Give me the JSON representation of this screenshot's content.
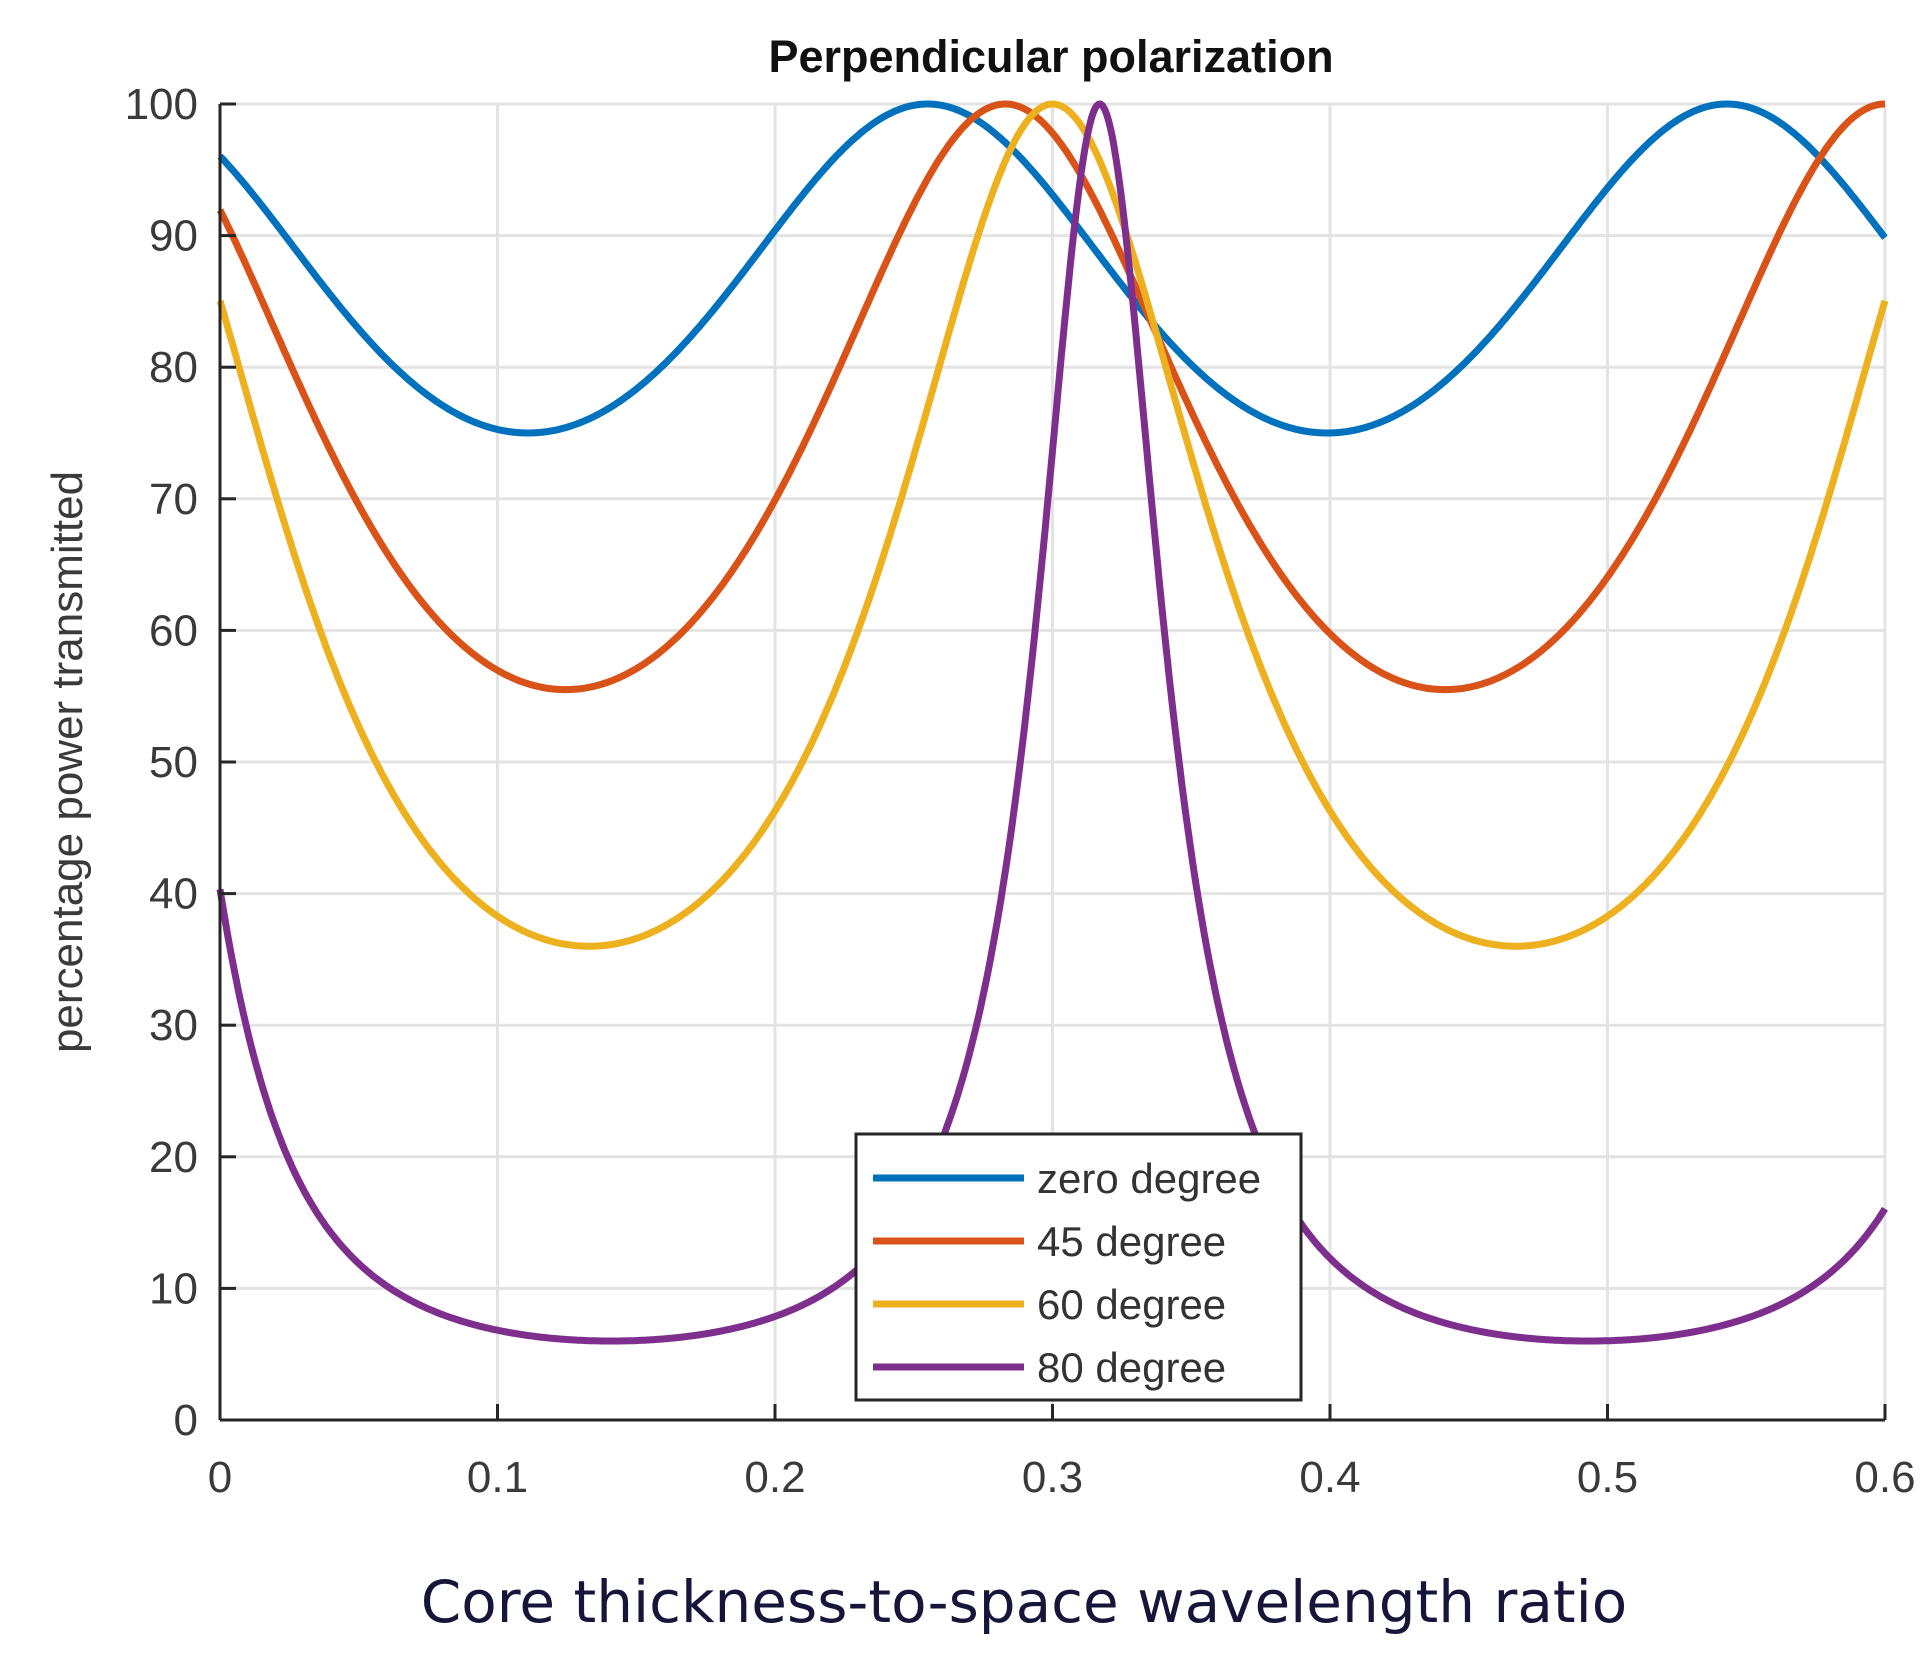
{
  "chart_data": {
    "type": "line",
    "title": "Perpendicular polarization",
    "xlabel": "Core thickness-to-space wavelength ratio",
    "ylabel": "percentage power transmitted",
    "xlim": [
      0,
      0.6
    ],
    "ylim": [
      0,
      100
    ],
    "grid": true,
    "legend_position": "bottom-center",
    "xticks": [
      "0",
      "0.1",
      "0.2",
      "0.3",
      "0.4",
      "0.5",
      "0.6"
    ],
    "xtick_values": [
      0,
      0.1,
      0.2,
      0.3,
      0.4,
      0.5,
      0.6
    ],
    "yticks": [
      "0",
      "10",
      "20",
      "30",
      "40",
      "50",
      "60",
      "70",
      "80",
      "90",
      "100"
    ],
    "ytick_values": [
      0,
      10,
      20,
      30,
      40,
      50,
      60,
      70,
      80,
      90,
      100
    ],
    "series": [
      {
        "name": "zero degree",
        "color": "#0072BD",
        "model": {
          "peak_x": 0.255,
          "period": 0.288,
          "min_value": 75
        },
        "key_points": [
          [
            0,
            95.5
          ],
          [
            0.11,
            75
          ],
          [
            0.255,
            100
          ],
          [
            0.4,
            75
          ],
          [
            0.543,
            100
          ],
          [
            0.6,
            90
          ]
        ]
      },
      {
        "name": "45 degree",
        "color": "#D95319",
        "model": {
          "peak_x": 0.283,
          "period": 0.317,
          "min_value": 55.5
        },
        "key_points": [
          [
            0,
            91
          ],
          [
            0.125,
            55.5
          ],
          [
            0.283,
            100
          ],
          [
            0.44,
            55.5
          ],
          [
            0.6,
            100
          ]
        ]
      },
      {
        "name": "60 degree",
        "color": "#EDB120",
        "model": {
          "peak_x": 0.3,
          "period": 0.334,
          "min_value": 36
        },
        "key_points": [
          [
            0,
            84
          ],
          [
            0.133,
            36
          ],
          [
            0.3,
            100
          ],
          [
            0.467,
            36
          ],
          [
            0.6,
            86
          ]
        ]
      },
      {
        "name": "80 degree",
        "color": "#7E2F8E",
        "model": {
          "peak_x": 0.317,
          "period": 0.352,
          "min_value": 6
        },
        "key_points": [
          [
            0,
            39.5
          ],
          [
            0.14,
            6
          ],
          [
            0.317,
            100
          ],
          [
            0.49,
            6
          ],
          [
            0.6,
            16
          ]
        ]
      }
    ]
  }
}
